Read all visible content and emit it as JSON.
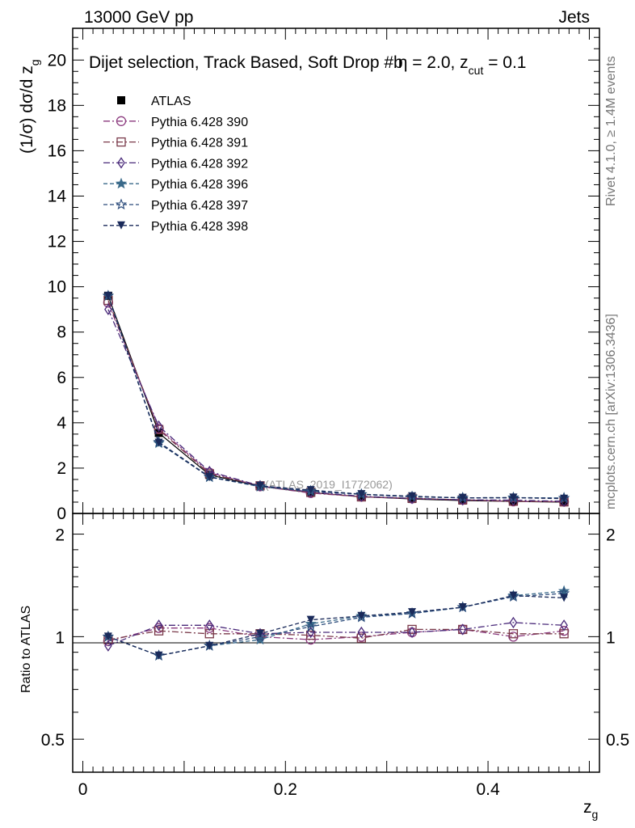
{
  "header": {
    "left": "13000 GeV pp",
    "right": "Jets"
  },
  "side_labels": {
    "rivet": "Rivet 4.1.0, ≥ 1.4M events",
    "mcplots": "mcplots.cern.ch [arXiv:1306.3436]"
  },
  "chart_data": [
    {
      "type": "line",
      "title": "Dijet selection, Track Based, Soft Drop #b",
      "title_tail": "η = 2.0, z",
      "title_sub": "cut",
      "title_end": " = 0.1",
      "ylabel": "(1/σ) dσ/d z",
      "ylabel_sub": "g",
      "watermark": "(ATLAS_2019_I1772062)",
      "xlim": [
        -0.01,
        0.51
      ],
      "ylim": [
        0,
        21.4
      ],
      "yticks": [
        0,
        2,
        4,
        6,
        8,
        10,
        12,
        14,
        16,
        18,
        20
      ],
      "ytick_labels": [
        "0",
        "2",
        "4",
        "6",
        "8",
        "10",
        "12",
        "14",
        "16",
        "18",
        "20"
      ],
      "x": [
        0.025,
        0.075,
        0.125,
        0.175,
        0.225,
        0.275,
        0.325,
        0.375,
        0.425,
        0.475
      ],
      "legend_position": "top-left",
      "series": [
        {
          "name": "ATLAS",
          "color": "#000000",
          "marker": "square-filled",
          "dash": "",
          "values": [
            9.6,
            3.55,
            1.7,
            1.2,
            0.92,
            0.74,
            0.64,
            0.57,
            0.53,
            0.5
          ]
        },
        {
          "name": "Pythia 6.428 390",
          "color": "#8b3a7e",
          "marker": "circle-open",
          "dash": "8,3,2,3",
          "values": [
            9.3,
            3.75,
            1.8,
            1.2,
            0.9,
            0.74,
            0.66,
            0.6,
            0.53,
            0.52
          ]
        },
        {
          "name": "Pythia 6.428 391",
          "color": "#7a3a4a",
          "marker": "square-open",
          "dash": "8,3,2,3",
          "values": [
            9.4,
            3.7,
            1.75,
            1.22,
            0.93,
            0.73,
            0.67,
            0.6,
            0.54,
            0.51
          ]
        },
        {
          "name": "Pythia 6.428 392",
          "color": "#4a2a7a",
          "marker": "diamond-open",
          "dash": "8,3,2,3",
          "values": [
            9.0,
            3.85,
            1.85,
            1.22,
            0.95,
            0.76,
            0.66,
            0.6,
            0.59,
            0.54
          ]
        },
        {
          "name": "Pythia 6.428 396",
          "color": "#3a6a8a",
          "marker": "star-filled",
          "dash": "5,3",
          "values": [
            9.6,
            3.1,
            1.6,
            1.18,
            1.0,
            0.85,
            0.74,
            0.69,
            0.7,
            0.68
          ]
        },
        {
          "name": "Pythia 6.428 397",
          "color": "#2a4a7a",
          "marker": "star-open",
          "dash": "5,3",
          "values": [
            9.6,
            3.15,
            1.62,
            1.2,
            0.98,
            0.84,
            0.74,
            0.69,
            0.69,
            0.68
          ]
        },
        {
          "name": "Pythia 6.428 398",
          "color": "#1a2a5a",
          "marker": "triangle-down-filled",
          "dash": "5,3",
          "values": [
            9.6,
            3.12,
            1.6,
            1.22,
            1.03,
            0.85,
            0.76,
            0.69,
            0.7,
            0.65
          ]
        }
      ]
    },
    {
      "type": "line",
      "ylabel": "Ratio to ATLAS",
      "xlabel": "z",
      "xlabel_sub": "g",
      "ylim": [
        0.4,
        2.3
      ],
      "scale": "log",
      "yticks": [
        0.5,
        1,
        2
      ],
      "ytick_labels": [
        "0.5",
        "1",
        "2"
      ],
      "xticks": [
        0,
        0.2,
        0.4
      ],
      "xtick_labels": [
        "0",
        "0.2",
        "0.4"
      ],
      "x": [
        0.025,
        0.075,
        0.125,
        0.175,
        0.225,
        0.275,
        0.325,
        0.375,
        0.425,
        0.475
      ],
      "series": [
        {
          "name": "Pythia 6.428 390",
          "values": [
            0.97,
            1.06,
            1.06,
            1.0,
            0.98,
            1.0,
            1.03,
            1.05,
            1.0,
            1.04
          ]
        },
        {
          "name": "Pythia 6.428 391",
          "values": [
            0.98,
            1.04,
            1.02,
            1.02,
            1.01,
            0.99,
            1.05,
            1.05,
            1.02,
            1.02
          ]
        },
        {
          "name": "Pythia 6.428 392",
          "values": [
            0.94,
            1.08,
            1.08,
            1.02,
            1.03,
            1.03,
            1.03,
            1.05,
            1.1,
            1.08
          ]
        },
        {
          "name": "Pythia 6.428 396",
          "values": [
            1.0,
            0.88,
            0.94,
            0.98,
            1.09,
            1.15,
            1.17,
            1.22,
            1.32,
            1.36
          ]
        },
        {
          "name": "Pythia 6.428 397",
          "values": [
            1.0,
            0.88,
            0.94,
            1.0,
            1.07,
            1.14,
            1.17,
            1.22,
            1.31,
            1.34
          ]
        },
        {
          "name": "Pythia 6.428 398",
          "values": [
            1.0,
            0.88,
            0.94,
            1.02,
            1.12,
            1.15,
            1.18,
            1.22,
            1.32,
            1.3
          ]
        }
      ]
    }
  ]
}
